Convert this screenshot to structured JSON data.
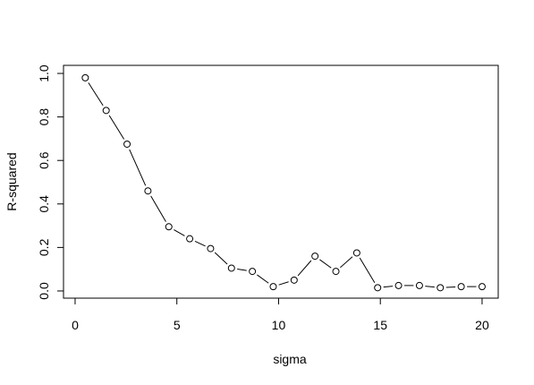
{
  "chart_data": {
    "type": "line",
    "title_x": "sigma",
    "title_y": "R-squared",
    "x": [
      0.5,
      1.526,
      2.553,
      3.579,
      4.605,
      5.632,
      6.658,
      7.684,
      8.711,
      9.737,
      10.763,
      11.789,
      12.816,
      13.842,
      14.868,
      15.895,
      16.921,
      17.947,
      18.974,
      20
    ],
    "values": [
      0.98,
      0.83,
      0.675,
      0.46,
      0.295,
      0.24,
      0.195,
      0.105,
      0.09,
      0.02,
      0.05,
      0.16,
      0.09,
      0.175,
      0.015,
      0.025,
      0.025,
      0.015,
      0.02,
      0.02
    ],
    "color": "#000000",
    "xlim": [
      -0.28,
      20.78
    ],
    "xticks": [
      0,
      5,
      10,
      15,
      20
    ],
    "ylim": [
      -0.024,
      1.019
    ],
    "yticks": [
      {
        "value": 0,
        "label": "0.0"
      },
      0.2,
      0.4,
      0.6,
      0.8,
      {
        "value": 1,
        "label": "1.0"
      }
    ]
  }
}
